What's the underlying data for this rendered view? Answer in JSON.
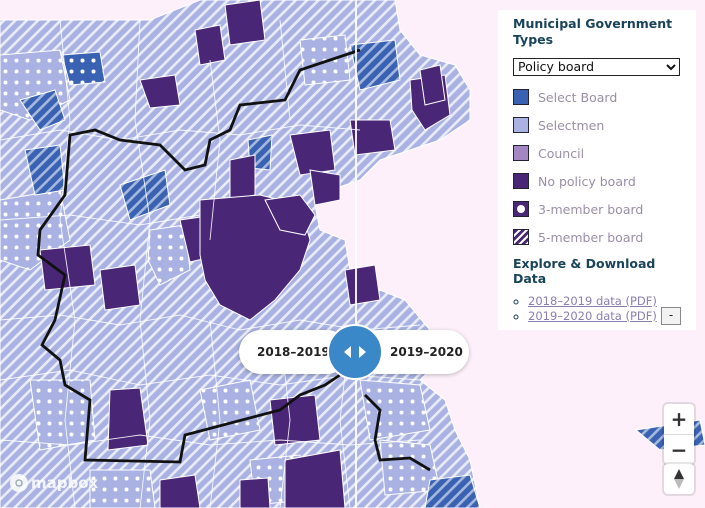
{
  "legend": {
    "title": "Municipal Government Types",
    "selected_option": "Policy board",
    "items": [
      {
        "label": "Select Board"
      },
      {
        "label": "Selectmen"
      },
      {
        "label": "Council"
      },
      {
        "label": "No policy board"
      },
      {
        "label": "3-member board"
      },
      {
        "label": "5-member board"
      }
    ],
    "explore_title": "Explore & Download Data",
    "links": [
      {
        "label": "2018–2019 data (PDF)"
      },
      {
        "label": "2019–2020 data (PDF)"
      }
    ],
    "collapse_label": "-"
  },
  "compare": {
    "left_label": "2018–2019",
    "right_label": "2019–2020"
  },
  "controls": {
    "zoom_in": "+",
    "zoom_out": "−"
  },
  "attribution": {
    "logo_text": "mapbox"
  },
  "colors": {
    "select_board": "#3a62b3",
    "selectmen": "#a9b2e2",
    "council": "#a487c2",
    "no_policy_board": "#4a2677",
    "water": "#fdf0fa",
    "swiper": "#3b88c8"
  }
}
